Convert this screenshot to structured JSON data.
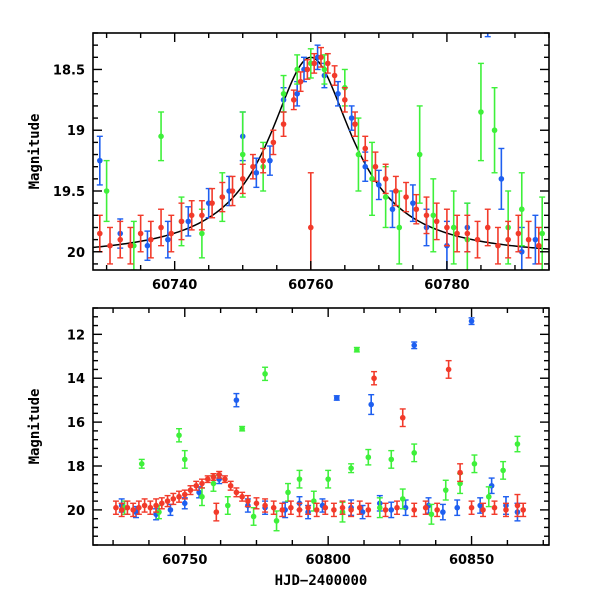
{
  "colors": {
    "blue": "#1e5ff0",
    "green": "#3ef03a",
    "red": "#f23a2a",
    "model": "#000000",
    "frame": "#000000"
  },
  "chart_data": [
    {
      "type": "scatter",
      "panel": "top",
      "title": "",
      "xlabel": "",
      "ylabel": "Magnitude",
      "xlim": [
        60728,
        60795
      ],
      "ylim": [
        20.15,
        18.2
      ],
      "y_inverted": true,
      "grid": false,
      "x_ticks": [
        60740,
        60760,
        60780
      ],
      "x_tick_labels": [
        "60740",
        "60760",
        "60780"
      ],
      "y_ticks": [
        18.5,
        19,
        19.5,
        20
      ],
      "y_tick_labels": [
        "18.5",
        "19",
        "19.5",
        "20"
      ],
      "error_bars": true,
      "model_curve": {
        "t0": 60760,
        "peak_mag": 18.4,
        "baseline_mag": 20.05,
        "timescale": 7.5,
        "x": [
          60728,
          60735,
          60740,
          60745,
          60750,
          60754,
          60757,
          60759,
          60760,
          60761,
          60763,
          60766,
          60770,
          60775,
          60780,
          60785,
          60790,
          60795
        ],
        "y": [
          20.02,
          19.96,
          19.87,
          19.72,
          19.48,
          19.16,
          18.81,
          18.52,
          18.4,
          18.52,
          18.81,
          19.27,
          19.64,
          19.84,
          19.95,
          20.0,
          20.02,
          20.03
        ]
      },
      "series": [
        {
          "name": "blue",
          "color_key": "blue",
          "x": [
            60729,
            60732,
            60736,
            60739,
            60742,
            60745,
            60748,
            60750,
            60752,
            60754,
            60756,
            60758,
            60759,
            60761,
            60762,
            60764,
            60766,
            60768,
            60770,
            60772,
            60775,
            60777,
            60780,
            60783,
            60786,
            60788,
            60791,
            60793
          ],
          "y": [
            19.25,
            19.85,
            19.95,
            19.9,
            19.75,
            19.6,
            19.5,
            19.05,
            19.35,
            19.25,
            18.75,
            18.7,
            18.5,
            18.4,
            18.55,
            18.7,
            18.9,
            19.3,
            19.45,
            19.65,
            19.6,
            19.8,
            19.95,
            19.8,
            18.15,
            19.4,
            20.0,
            19.9
          ],
          "err": [
            0.2,
            0.12,
            0.12,
            0.15,
            0.12,
            0.12,
            0.12,
            0.2,
            0.12,
            0.12,
            0.1,
            0.1,
            0.1,
            0.1,
            0.1,
            0.1,
            0.1,
            0.12,
            0.12,
            0.15,
            0.15,
            0.15,
            0.2,
            0.2,
            0.08,
            0.25,
            0.2,
            0.2
          ]
        },
        {
          "name": "green",
          "color_key": "green",
          "x": [
            60730,
            60734,
            60738,
            60741,
            60744,
            60747,
            60750,
            60753,
            60756,
            60758,
            60760,
            60762,
            60765,
            60767,
            60769,
            60771,
            60773,
            60776,
            60778,
            60781,
            60783,
            60785,
            60787,
            60789,
            60791,
            60794
          ],
          "y": [
            19.5,
            19.95,
            19.05,
            19.75,
            19.85,
            19.55,
            19.2,
            19.3,
            18.7,
            18.5,
            18.45,
            18.5,
            18.65,
            19.2,
            19.4,
            19.55,
            19.8,
            19.2,
            19.7,
            19.8,
            19.9,
            18.85,
            19.0,
            19.8,
            19.65,
            19.85
          ],
          "err": [
            0.25,
            0.2,
            0.2,
            0.2,
            0.2,
            0.2,
            0.35,
            0.2,
            0.15,
            0.12,
            0.12,
            0.12,
            0.15,
            0.3,
            0.3,
            0.25,
            0.3,
            0.4,
            0.3,
            0.3,
            0.3,
            0.4,
            0.35,
            0.3,
            0.3,
            0.3
          ]
        },
        {
          "name": "red",
          "color_key": "red",
          "x": [
            60729,
            60730.5,
            60732,
            60733.5,
            60735,
            60736.5,
            60738,
            60739.5,
            60741,
            60742.5,
            60744,
            60745.5,
            60747,
            60748.5,
            60750,
            60751.5,
            60753,
            60754.5,
            60756,
            60757.5,
            60758.5,
            60759.5,
            60760,
            60760.5,
            60761.5,
            60762.5,
            60763.5,
            60765,
            60766.5,
            60768,
            60769.5,
            60771,
            60772.5,
            60774,
            60775.5,
            60777,
            60778.5,
            60780,
            60781.5,
            60783,
            60784.5,
            60786,
            60787.5,
            60789,
            60790.5,
            60792,
            60793.5
          ],
          "y": [
            19.85,
            19.95,
            19.9,
            19.95,
            19.85,
            19.9,
            19.8,
            19.85,
            19.75,
            19.7,
            19.7,
            19.6,
            19.55,
            19.5,
            19.4,
            19.3,
            19.25,
            19.1,
            18.95,
            18.75,
            18.6,
            18.5,
            19.8,
            18.45,
            18.4,
            18.45,
            18.55,
            18.75,
            18.95,
            19.15,
            19.3,
            19.4,
            19.5,
            19.55,
            19.65,
            19.7,
            19.75,
            19.8,
            19.85,
            19.85,
            19.9,
            19.8,
            19.95,
            19.9,
            19.85,
            19.9,
            19.95
          ],
          "err": [
            0.15,
            0.15,
            0.15,
            0.15,
            0.15,
            0.15,
            0.15,
            0.15,
            0.15,
            0.12,
            0.12,
            0.12,
            0.12,
            0.12,
            0.12,
            0.1,
            0.1,
            0.1,
            0.1,
            0.08,
            0.08,
            0.08,
            0.45,
            0.08,
            0.08,
            0.08,
            0.08,
            0.1,
            0.1,
            0.1,
            0.12,
            0.12,
            0.12,
            0.12,
            0.12,
            0.15,
            0.15,
            0.15,
            0.15,
            0.15,
            0.15,
            0.15,
            0.15,
            0.15,
            0.15,
            0.15,
            0.15
          ]
        }
      ]
    },
    {
      "type": "scatter",
      "panel": "bottom",
      "title": "",
      "xlabel": "HJD−2400000",
      "ylabel": "Magnitude",
      "xlim": [
        60718,
        60877
      ],
      "ylim": [
        21.6,
        10.8
      ],
      "y_inverted": true,
      "grid": false,
      "x_ticks": [
        60750,
        60800,
        60850
      ],
      "x_tick_labels": [
        "60750",
        "60800",
        "60850"
      ],
      "y_ticks": [
        12,
        14,
        16,
        18,
        20
      ],
      "y_tick_labels": [
        "12",
        "14",
        "16",
        "18",
        "20"
      ],
      "error_bars": true,
      "series": [
        {
          "name": "blue",
          "color_key": "blue",
          "x": [
            60728,
            60733,
            60740,
            60745,
            60750,
            60755,
            60762,
            60768,
            60772,
            60778,
            60785,
            60790,
            60793,
            60798,
            60803,
            60808,
            60812,
            60815,
            60818,
            60822,
            60827,
            60830,
            60835,
            60840,
            60845,
            60850,
            60853,
            60857,
            60862,
            60866
          ],
          "y": [
            19.8,
            20.1,
            20.2,
            20.0,
            19.7,
            19.2,
            18.6,
            15.0,
            19.8,
            19.9,
            20.0,
            19.7,
            20.1,
            19.8,
            14.9,
            19.9,
            20.1,
            15.2,
            19.7,
            20.0,
            19.9,
            12.5,
            19.8,
            20.1,
            19.9,
            11.4,
            19.8,
            18.9,
            19.8,
            20.1
          ],
          "err": [
            0.3,
            0.25,
            0.25,
            0.25,
            0.25,
            0.25,
            0.2,
            0.3,
            0.3,
            0.3,
            0.35,
            0.3,
            0.3,
            0.3,
            0.1,
            0.35,
            0.3,
            0.45,
            0.35,
            0.35,
            0.35,
            0.15,
            0.35,
            0.35,
            0.35,
            0.15,
            0.35,
            0.35,
            0.4,
            0.4
          ]
        },
        {
          "name": "green",
          "color_key": "green",
          "x": [
            60729,
            60735,
            60741,
            60748,
            60750,
            60756,
            60760,
            60765,
            60770,
            60774,
            60778,
            60782,
            60786,
            60790,
            60795,
            60800,
            60805,
            60808,
            60810,
            60814,
            60818,
            60822,
            60826,
            60830,
            60836,
            60841,
            60846,
            60851,
            60856,
            60861,
            60866
          ],
          "y": [
            19.9,
            17.9,
            20.1,
            16.6,
            17.7,
            19.4,
            18.8,
            19.8,
            16.3,
            20.3,
            13.8,
            20.5,
            19.2,
            18.6,
            19.6,
            18.6,
            20.1,
            18.1,
            12.7,
            17.6,
            19.9,
            17.7,
            19.5,
            17.4,
            20.2,
            19.1,
            18.8,
            17.9,
            19.4,
            18.2,
            17.0
          ],
          "err": [
            0.3,
            0.2,
            0.3,
            0.3,
            0.4,
            0.4,
            0.35,
            0.4,
            0.1,
            0.4,
            0.3,
            0.45,
            0.4,
            0.4,
            0.45,
            0.4,
            0.45,
            0.2,
            0.1,
            0.35,
            0.45,
            0.4,
            0.45,
            0.4,
            0.45,
            0.45,
            0.45,
            0.4,
            0.45,
            0.4,
            0.35
          ]
        },
        {
          "name": "red",
          "color_key": "red",
          "x": [
            60726,
            60728,
            60730,
            60732,
            60734,
            60736,
            60738,
            60740,
            60742,
            60744,
            60746,
            60748,
            60750,
            60752,
            60754,
            60756,
            60758,
            60760,
            60761,
            60762,
            60764,
            60766,
            60768,
            60770,
            60772,
            60775,
            60778,
            60781,
            60784,
            60787,
            60790,
            60793,
            60796,
            60799,
            60802,
            60805,
            60808,
            60811,
            60814,
            60816,
            60820,
            60824,
            60826,
            60830,
            60834,
            60838,
            60842,
            60846,
            60850,
            60854,
            60858,
            60862,
            60866,
            60868
          ],
          "y": [
            19.9,
            20.0,
            19.9,
            20.0,
            19.9,
            19.8,
            19.9,
            19.8,
            19.7,
            19.6,
            19.5,
            19.4,
            19.3,
            19.1,
            18.9,
            18.8,
            18.6,
            18.5,
            20.1,
            18.4,
            18.6,
            18.9,
            19.2,
            19.4,
            19.6,
            19.7,
            19.8,
            19.9,
            20.0,
            19.9,
            20.0,
            19.9,
            20.0,
            19.9,
            20.0,
            19.9,
            20.0,
            19.9,
            20.0,
            14.0,
            20.0,
            19.9,
            15.8,
            20.0,
            19.9,
            20.0,
            13.6,
            18.3,
            19.9,
            20.0,
            19.9,
            20.0,
            19.8,
            20.0
          ],
          "err": [
            0.3,
            0.3,
            0.3,
            0.3,
            0.3,
            0.3,
            0.3,
            0.3,
            0.25,
            0.25,
            0.25,
            0.25,
            0.2,
            0.2,
            0.2,
            0.2,
            0.15,
            0.15,
            0.4,
            0.15,
            0.15,
            0.2,
            0.2,
            0.2,
            0.25,
            0.25,
            0.3,
            0.3,
            0.3,
            0.3,
            0.3,
            0.3,
            0.3,
            0.3,
            0.3,
            0.3,
            0.3,
            0.3,
            0.3,
            0.3,
            0.3,
            0.3,
            0.4,
            0.3,
            0.3,
            0.3,
            0.4,
            0.4,
            0.3,
            0.3,
            0.3,
            0.3,
            0.5,
            0.3
          ]
        }
      ]
    }
  ]
}
